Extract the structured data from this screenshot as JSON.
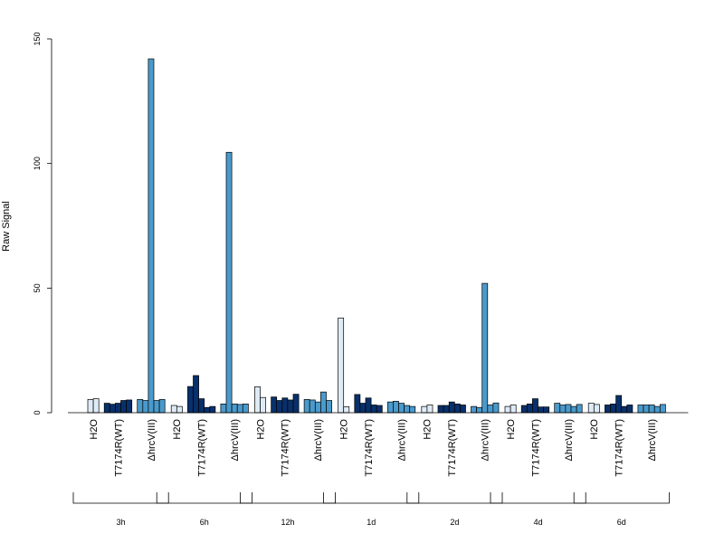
{
  "chart_data": {
    "type": "bar",
    "title": "",
    "xlabel": "",
    "ylabel": "Raw Signal",
    "ylim": [
      0,
      150
    ],
    "yticks": [
      0,
      50,
      100,
      150
    ],
    "groups": [
      "H2O",
      "T7174R(WT)",
      "ΔhrcV(III)"
    ],
    "group_colors": [
      "#deebf7",
      "#08306b",
      "#4a9acc"
    ],
    "timepoints": [
      {
        "label": "3h",
        "values": [
          [
            5.3,
            5.6
          ],
          [
            3.8,
            3.4,
            3.8,
            4.9,
            5.1
          ],
          [
            5.3,
            4.9,
            142.0,
            4.9,
            5.3
          ]
        ]
      },
      {
        "label": "6h",
        "values": [
          [
            2.9,
            2.5
          ],
          [
            10.5,
            14.9,
            5.6,
            2.1,
            2.5
          ],
          [
            3.5,
            104.5,
            3.5,
            3.3,
            3.5
          ]
        ]
      },
      {
        "label": "12h",
        "values": [
          [
            10.4,
            6.1
          ],
          [
            6.3,
            4.9,
            5.9,
            5.1,
            7.4
          ],
          [
            5.3,
            5.1,
            4.3,
            8.3,
            4.9
          ]
        ]
      },
      {
        "label": "1d",
        "values": [
          [
            38.0,
            2.4
          ],
          [
            7.3,
            3.8,
            5.9,
            3.1,
            2.9
          ],
          [
            4.3,
            4.6,
            3.8,
            2.9,
            2.5
          ]
        ]
      },
      {
        "label": "2d",
        "values": [
          [
            2.5,
            3.1
          ],
          [
            2.9,
            2.9,
            4.3,
            3.5,
            3.1
          ],
          [
            2.5,
            2.1,
            51.9,
            3.1,
            3.9
          ]
        ]
      },
      {
        "label": "4d",
        "values": [
          [
            2.5,
            3.1
          ],
          [
            2.9,
            3.5,
            5.6,
            2.3,
            2.3
          ],
          [
            3.8,
            3.1,
            3.3,
            2.5,
            3.3
          ]
        ]
      },
      {
        "label": "6d",
        "values": [
          [
            3.8,
            3.3
          ],
          [
            3.1,
            3.5,
            6.9,
            2.5,
            3.1
          ],
          [
            3.1,
            3.1,
            3.1,
            2.5,
            3.3
          ]
        ]
      }
    ]
  }
}
